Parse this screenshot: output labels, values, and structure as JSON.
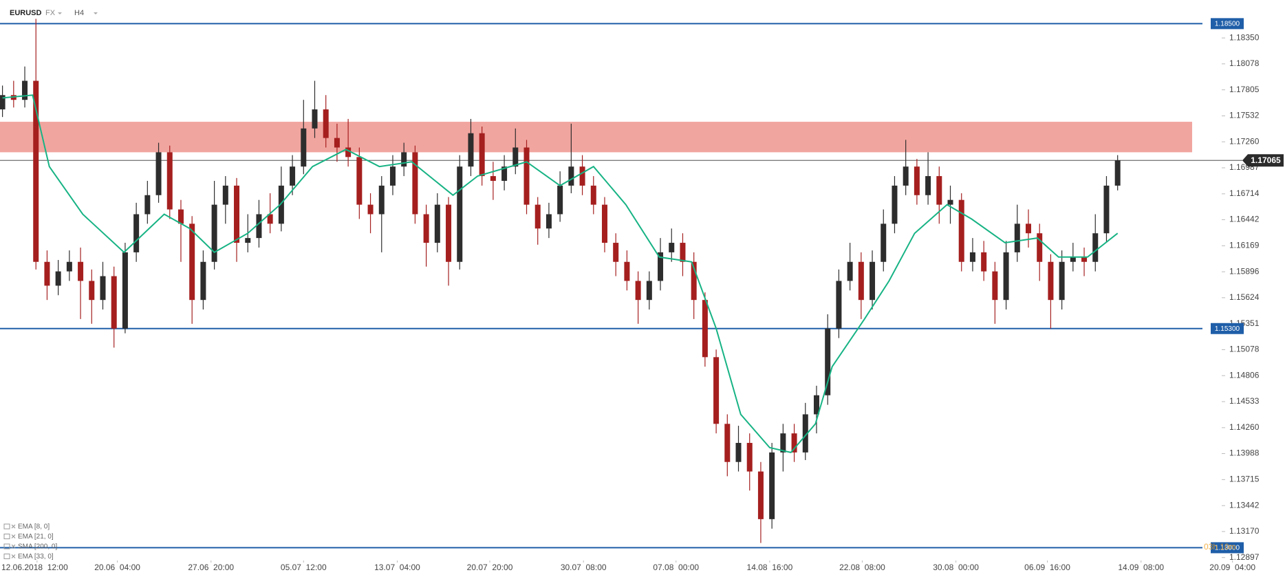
{
  "chart_data": {
    "type": "candlestick",
    "title": "EURUSD",
    "market": "FX",
    "interval": "H4",
    "timer": "03h 10m",
    "indicators": [
      "EMA [8, 0]",
      "EMA [21, 0]",
      "SMA [200, 0]",
      "EMA [33, 0]"
    ],
    "up_color": "#2d2d2d",
    "down_color": "#a51f1f",
    "open": [
      1.176,
      1.1775,
      1.177,
      1.179,
      1.16,
      1.1575,
      1.159,
      1.16,
      1.158,
      1.156,
      1.1585,
      1.153,
      1.161,
      1.165,
      1.167,
      1.1715,
      1.1655,
      1.164,
      1.156,
      1.16,
      1.166,
      1.168,
      1.162,
      1.1625,
      1.165,
      1.164,
      1.168,
      1.17,
      1.174,
      1.176,
      1.173,
      1.172,
      1.171,
      1.166,
      1.165,
      1.168,
      1.17,
      1.1715,
      1.165,
      1.162,
      1.166,
      1.16,
      1.17,
      1.1735,
      1.169,
      1.1685,
      1.17,
      1.172,
      1.166,
      1.1635,
      1.165,
      1.168,
      1.17,
      1.168,
      1.166,
      1.162,
      1.16,
      1.158,
      1.156,
      1.158,
      1.161,
      1.162,
      1.16,
      1.156,
      1.15,
      1.143,
      1.139,
      1.141,
      1.138,
      1.133,
      1.14,
      1.142,
      1.14,
      1.144,
      1.146,
      1.153,
      1.158,
      1.16,
      1.156,
      1.16,
      1.164,
      1.168,
      1.17,
      1.167,
      1.169,
      1.166,
      1.1665,
      1.16,
      1.161,
      1.159,
      1.156,
      1.161,
      1.164,
      1.163,
      1.16,
      1.156,
      1.16,
      1.1605,
      1.16,
      1.163,
      1.168
    ],
    "high": [
      1.1785,
      1.179,
      1.1805,
      1.1855,
      1.1612,
      1.1602,
      1.1612,
      1.1615,
      1.1592,
      1.16,
      1.1595,
      1.162,
      1.1662,
      1.1685,
      1.1725,
      1.1722,
      1.1665,
      1.1648,
      1.1612,
      1.1685,
      1.169,
      1.1688,
      1.165,
      1.1665,
      1.1672,
      1.17,
      1.1712,
      1.177,
      1.179,
      1.1775,
      1.1745,
      1.175,
      1.172,
      1.1672,
      1.169,
      1.1712,
      1.1725,
      1.1722,
      1.166,
      1.1672,
      1.1668,
      1.1712,
      1.175,
      1.1742,
      1.1705,
      1.1712,
      1.174,
      1.1728,
      1.1668,
      1.1662,
      1.1695,
      1.1745,
      1.1712,
      1.169,
      1.1668,
      1.163,
      1.1612,
      1.159,
      1.159,
      1.1625,
      1.1635,
      1.163,
      1.161,
      1.1568,
      1.1508,
      1.144,
      1.1428,
      1.142,
      1.139,
      1.141,
      1.143,
      1.143,
      1.1452,
      1.147,
      1.1545,
      1.1592,
      1.162,
      1.161,
      1.1612,
      1.1655,
      1.169,
      1.1728,
      1.1708,
      1.1715,
      1.17,
      1.168,
      1.1672,
      1.1625,
      1.1622,
      1.16,
      1.1622,
      1.166,
      1.1655,
      1.164,
      1.1608,
      1.1612,
      1.162,
      1.1615,
      1.165,
      1.169,
      1.1712
    ],
    "low": [
      1.1752,
      1.1762,
      1.1762,
      1.1592,
      1.156,
      1.1565,
      1.158,
      1.154,
      1.1535,
      1.155,
      1.151,
      1.1525,
      1.16,
      1.164,
      1.1662,
      1.1645,
      1.16,
      1.1535,
      1.155,
      1.1592,
      1.164,
      1.16,
      1.161,
      1.1615,
      1.163,
      1.1632,
      1.167,
      1.1692,
      1.173,
      1.172,
      1.1705,
      1.17,
      1.1645,
      1.163,
      1.161,
      1.167,
      1.169,
      1.164,
      1.1595,
      1.161,
      1.1575,
      1.1592,
      1.169,
      1.168,
      1.1665,
      1.1675,
      1.1692,
      1.165,
      1.1618,
      1.1625,
      1.1642,
      1.1672,
      1.167,
      1.165,
      1.161,
      1.1585,
      1.157,
      1.1535,
      1.155,
      1.157,
      1.16,
      1.1585,
      1.154,
      1.149,
      1.142,
      1.1375,
      1.138,
      1.136,
      1.1305,
      1.132,
      1.138,
      1.139,
      1.1392,
      1.142,
      1.145,
      1.152,
      1.157,
      1.154,
      1.155,
      1.159,
      1.163,
      1.167,
      1.166,
      1.166,
      1.164,
      1.164,
      1.159,
      1.159,
      1.158,
      1.1535,
      1.155,
      1.16,
      1.1615,
      1.158,
      1.153,
      1.155,
      1.159,
      1.1585,
      1.159,
      1.162,
      1.1675
    ],
    "close": [
      1.1775,
      1.177,
      1.179,
      1.16,
      1.1575,
      1.159,
      1.16,
      1.158,
      1.156,
      1.1585,
      1.153,
      1.161,
      1.165,
      1.167,
      1.1715,
      1.1655,
      1.164,
      1.156,
      1.16,
      1.166,
      1.168,
      1.162,
      1.1625,
      1.165,
      1.164,
      1.168,
      1.17,
      1.174,
      1.176,
      1.173,
      1.172,
      1.171,
      1.166,
      1.165,
      1.168,
      1.17,
      1.1715,
      1.165,
      1.162,
      1.166,
      1.16,
      1.17,
      1.1735,
      1.169,
      1.1685,
      1.17,
      1.172,
      1.166,
      1.1635,
      1.165,
      1.168,
      1.17,
      1.168,
      1.166,
      1.162,
      1.16,
      1.158,
      1.156,
      1.158,
      1.161,
      1.162,
      1.16,
      1.156,
      1.15,
      1.143,
      1.139,
      1.141,
      1.138,
      1.133,
      1.14,
      1.142,
      1.14,
      1.144,
      1.146,
      1.153,
      1.158,
      1.16,
      1.156,
      1.16,
      1.164,
      1.168,
      1.17,
      1.167,
      1.169,
      1.166,
      1.1665,
      1.16,
      1.161,
      1.159,
      1.156,
      1.161,
      1.164,
      1.163,
      1.16,
      1.156,
      1.16,
      1.1605,
      1.16,
      1.163,
      1.168,
      1.17065
    ],
    "line": {
      "color": "#17b384",
      "x": [
        0,
        2.7,
        4.2,
        7.2,
        10.9,
        14.5,
        16.8,
        19,
        22,
        24.9,
        27.8,
        30.8,
        33.8,
        36.7,
        40.4,
        42.6,
        47,
        50,
        53,
        55.9,
        58.9,
        61.8,
        64,
        66.2,
        68.8,
        70.7,
        72.9,
        74.4,
        77.3,
        79.5,
        81.8,
        84.7,
        86.9,
        89.9,
        92.8,
        94.7,
        97.3,
        100
      ],
      "values": [
        1.1772,
        1.1775,
        1.17,
        1.165,
        1.161,
        1.165,
        1.1635,
        1.161,
        1.163,
        1.166,
        1.17,
        1.1718,
        1.17,
        1.1705,
        1.167,
        1.169,
        1.1705,
        1.168,
        1.17,
        1.166,
        1.1605,
        1.16,
        1.153,
        1.144,
        1.1405,
        1.14,
        1.143,
        1.149,
        1.154,
        1.158,
        1.163,
        1.166,
        1.1645,
        1.162,
        1.1625,
        1.1605,
        1.1605,
        1.163
      ]
    },
    "zone": [
      1.1715,
      1.1747
    ],
    "zone_color": "#f0a09a",
    "levels": [
      {
        "value": 1.185,
        "label": "1.18500"
      },
      {
        "value": 1.153,
        "label": "1.15300"
      },
      {
        "value": 1.13,
        "label": "1.13000"
      }
    ],
    "level_color": "#1f5ea8",
    "last": 1.17065,
    "xlim": [
      0,
      111
    ],
    "xticks": [
      {
        "value": 3.1,
        "label": "12.06.2018  12:00"
      },
      {
        "value": 10.3,
        "label": "20.06  04:00"
      },
      {
        "value": 18.7,
        "label": "27.06  20:00"
      },
      {
        "value": 27,
        "label": "05.07  12:00"
      },
      {
        "value": 35.4,
        "label": "13.07  04:00"
      },
      {
        "value": 43.7,
        "label": "20.07  20:00"
      },
      {
        "value": 52.1,
        "label": "30.07  08:00"
      },
      {
        "value": 60.4,
        "label": "07.08  00:00"
      },
      {
        "value": 68.8,
        "label": "14.08  16:00"
      },
      {
        "value": 77.1,
        "label": "22.08  08:00"
      },
      {
        "value": 85.5,
        "label": "30.08  00:00"
      },
      {
        "value": 93.7,
        "label": "06.09  16:00"
      },
      {
        "value": 102.1,
        "label": "14.09  08:00"
      },
      {
        "value": 110.3,
        "label": "20.09  04:00"
      }
    ],
    "ylim": [
      1.12866,
      1.18748
    ],
    "yticks": [
      {
        "value": 1.1835,
        "label": "1.18350"
      },
      1.18078,
      1.17805,
      1.17532,
      {
        "value": 1.1726,
        "label": "1.17260"
      },
      1.16987,
      1.16714,
      1.16442,
      1.16169,
      1.15896,
      1.15624,
      1.15351,
      1.15078,
      1.14806,
      1.14533,
      {
        "value": 1.1426,
        "label": "1.14260"
      },
      1.13988,
      1.13715,
      1.13442,
      {
        "value": 1.1317,
        "label": "1.13170"
      },
      1.12897
    ]
  }
}
